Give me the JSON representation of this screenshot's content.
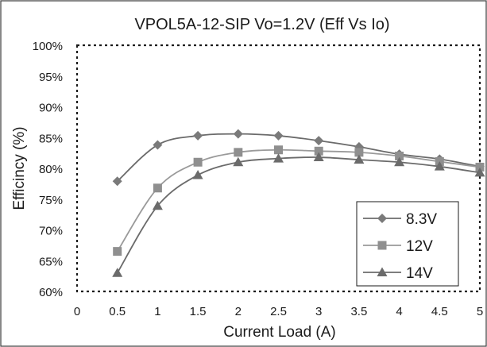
{
  "chart_data": {
    "type": "line",
    "title": "VPOL5A-12-SIP Vo=1.2V (Eff Vs Io)",
    "xlabel": "Current Load (A)",
    "ylabel": "Efficincy (%)",
    "xlim": [
      0,
      5
    ],
    "ylim": [
      60,
      100
    ],
    "x_ticks": [
      "0",
      "0.5",
      "1",
      "1.5",
      "2",
      "2.5",
      "3",
      "3.5",
      "4",
      "4.5",
      "5"
    ],
    "y_ticks": [
      "60%",
      "65%",
      "70%",
      "75%",
      "80%",
      "85%",
      "90%",
      "95%",
      "100%"
    ],
    "legend_position": "lower-right",
    "grid": false,
    "x": [
      0.5,
      1,
      1.5,
      2,
      2.5,
      3,
      3.5,
      4,
      4.5,
      5
    ],
    "series": [
      {
        "name": "8.3V",
        "marker": "diamond",
        "color": "#6b6b6b",
        "marker_color": "#7a7a7a",
        "values": [
          77.9,
          83.8,
          85.3,
          85.6,
          85.3,
          84.5,
          83.5,
          82.3,
          81.5,
          80.3
        ]
      },
      {
        "name": "12V",
        "marker": "square",
        "color": "#9a9a9a",
        "marker_color": "#8f8f8f",
        "values": [
          66.5,
          76.8,
          81.0,
          82.6,
          83.0,
          82.8,
          82.6,
          82.0,
          81.1,
          80.2
        ]
      },
      {
        "name": "14V",
        "marker": "triangle",
        "color": "#6b6b6b",
        "marker_color": "#6b6b6b",
        "values": [
          63.0,
          73.9,
          78.9,
          81.0,
          81.6,
          81.8,
          81.4,
          81.0,
          80.3,
          79.3
        ]
      }
    ]
  }
}
